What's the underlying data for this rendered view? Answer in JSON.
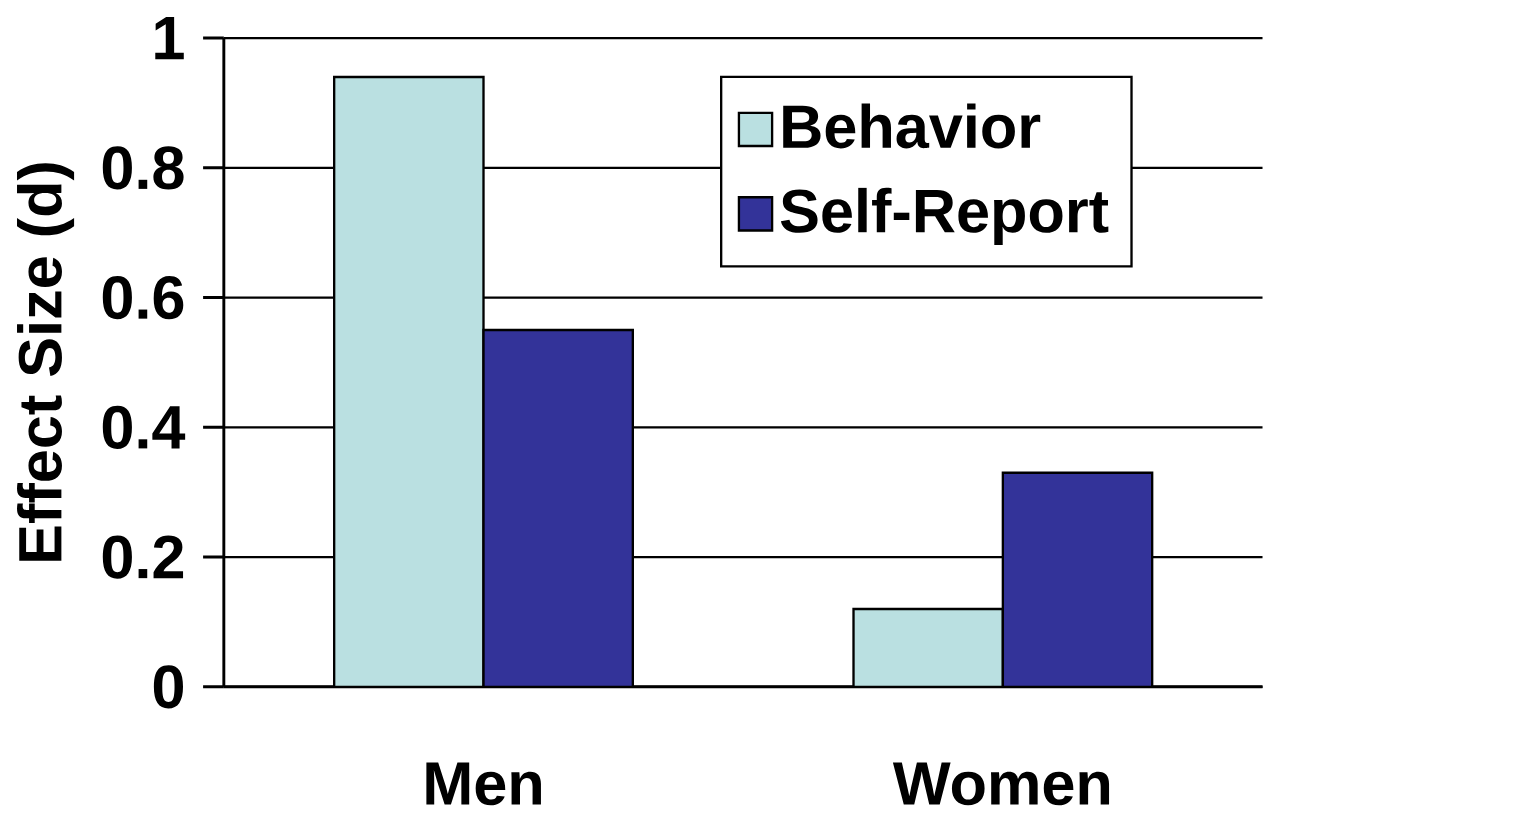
{
  "chart_data": {
    "type": "bar",
    "ylabel": "Effect Size (d)",
    "categories": [
      "Men",
      "Women"
    ],
    "series": [
      {
        "name": "Behavior",
        "color": "#bae0e1",
        "values": [
          0.94,
          0.12
        ]
      },
      {
        "name": "Self-Report",
        "color": "#333399",
        "values": [
          0.55,
          0.33
        ]
      }
    ],
    "ylim": [
      0,
      1
    ],
    "yticks": [
      0,
      0.2,
      0.4,
      0.6,
      0.8,
      1
    ],
    "grid": "y",
    "legend": "top right"
  }
}
